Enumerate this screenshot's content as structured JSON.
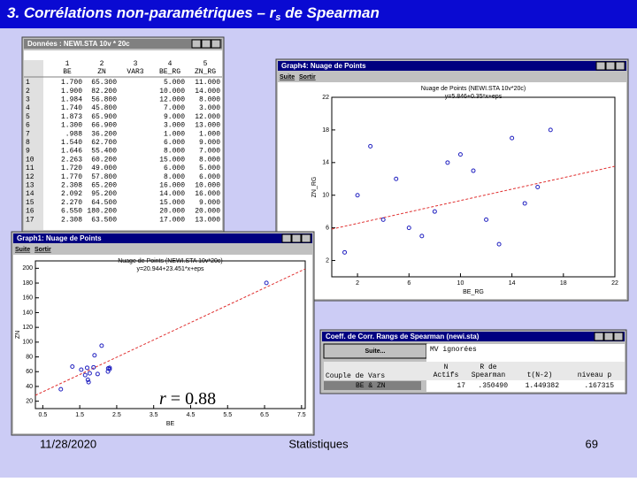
{
  "slide": {
    "title_parts": [
      "3. Corrélations non-paramétriques – r",
      "s",
      " de Spearman"
    ],
    "date": "11/28/2020",
    "footer": "Statistiques",
    "page": "69",
    "annotation": {
      "symbol": "r",
      "text": " = 0.88"
    }
  },
  "data_window": {
    "title": "Données : NEWI.STA 10v * 20c",
    "columns": [
      {
        "num": "1",
        "name": "BE"
      },
      {
        "num": "2",
        "name": "ZN"
      },
      {
        "num": "3",
        "name": "VAR3"
      },
      {
        "num": "4",
        "name": "BE_RG"
      },
      {
        "num": "5",
        "name": "ZN_RG"
      }
    ],
    "rows": [
      [
        "1",
        "1.700",
        "65.300",
        "5.000",
        "11.000"
      ],
      [
        "2",
        "1.900",
        "82.200",
        "10.000",
        "14.000"
      ],
      [
        "3",
        "1.984",
        "56.800",
        "12.000",
        "8.000"
      ],
      [
        "4",
        "1.740",
        "45.800",
        "7.000",
        "3.000"
      ],
      [
        "5",
        "1.873",
        "65.900",
        "9.000",
        "12.000"
      ],
      [
        "6",
        "1.300",
        "66.900",
        "3.000",
        "13.000"
      ],
      [
        "7",
        ".988",
        "36.200",
        "1.000",
        "1.000"
      ],
      [
        "8",
        "1.540",
        "62.700",
        "6.000",
        "9.000"
      ],
      [
        "9",
        "1.646",
        "55.400",
        "8.000",
        "7.000"
      ],
      [
        "10",
        "2.263",
        "60.200",
        "15.000",
        "8.000"
      ],
      [
        "11",
        "1.720",
        "49.000",
        "6.000",
        "5.000"
      ],
      [
        "12",
        "1.770",
        "57.800",
        "8.000",
        "6.000"
      ],
      [
        "13",
        "2.308",
        "65.200",
        "16.000",
        "10.000"
      ],
      [
        "14",
        "2.092",
        "95.200",
        "14.000",
        "16.000"
      ],
      [
        "15",
        "2.270",
        "64.500",
        "15.000",
        "9.000"
      ],
      [
        "16",
        "6.550",
        "180.200",
        "20.000",
        "20.000"
      ],
      [
        "17",
        "2.308",
        "63.500",
        "17.000",
        "13.000"
      ]
    ]
  },
  "rank_plot": {
    "window_title": "Graph4: Nuage de Points",
    "menu": [
      "Suite",
      "Sortir"
    ],
    "title": "Nuage de Points (NEWI.STA 10v*20c)",
    "equation": "y=5.846+0.35*x+eps",
    "xlabel": "BE_RG",
    "ylabel": "ZN_RG",
    "x": [
      1,
      2,
      3,
      4,
      5,
      6,
      7,
      8,
      9,
      10,
      11,
      12,
      13,
      14,
      15,
      16,
      17
    ],
    "y": [
      3,
      10,
      16,
      7,
      12,
      6,
      5,
      8,
      14,
      15,
      13,
      7,
      4,
      17,
      9,
      11,
      18
    ],
    "xlim": [
      0,
      22
    ],
    "ylim": [
      0,
      22
    ],
    "xticks": [
      2,
      6,
      10,
      14,
      18,
      22
    ],
    "yticks": [
      2,
      6,
      10,
      14,
      18,
      22
    ]
  },
  "raw_plot": {
    "window_title": "Graph1: Nuage de Points",
    "menu": [
      "Suite",
      "Sortir"
    ],
    "title": "Nuage de Points (NEWI.STA 10v*20c)",
    "equation": "y=20.944+23.451*x+eps",
    "xlabel": "BE",
    "ylabel": "ZN",
    "xlim": [
      0.3,
      7.6
    ],
    "ylim": [
      10,
      210
    ],
    "xticks": [
      0.5,
      1.5,
      2.5,
      3.5,
      4.5,
      5.5,
      6.5,
      7.5
    ],
    "yticks": [
      20,
      40,
      60,
      80,
      100,
      120,
      140,
      160,
      180,
      200
    ]
  },
  "spearman": {
    "window_title": "Coeff. de Corr. Rangs de Spearman (newi.sta)",
    "button": "Suite...",
    "note": "MV ignorées",
    "row_header": "Couple de Vars",
    "headers": [
      [
        "N",
        "Actifs"
      ],
      [
        "R de",
        "Spearman"
      ],
      [
        "t(N-2)"
      ],
      [
        "niveau p"
      ]
    ],
    "row": {
      "label": "BE & ZN",
      "values": [
        "17",
        ".350490",
        "1.449382",
        ".167315"
      ]
    }
  }
}
